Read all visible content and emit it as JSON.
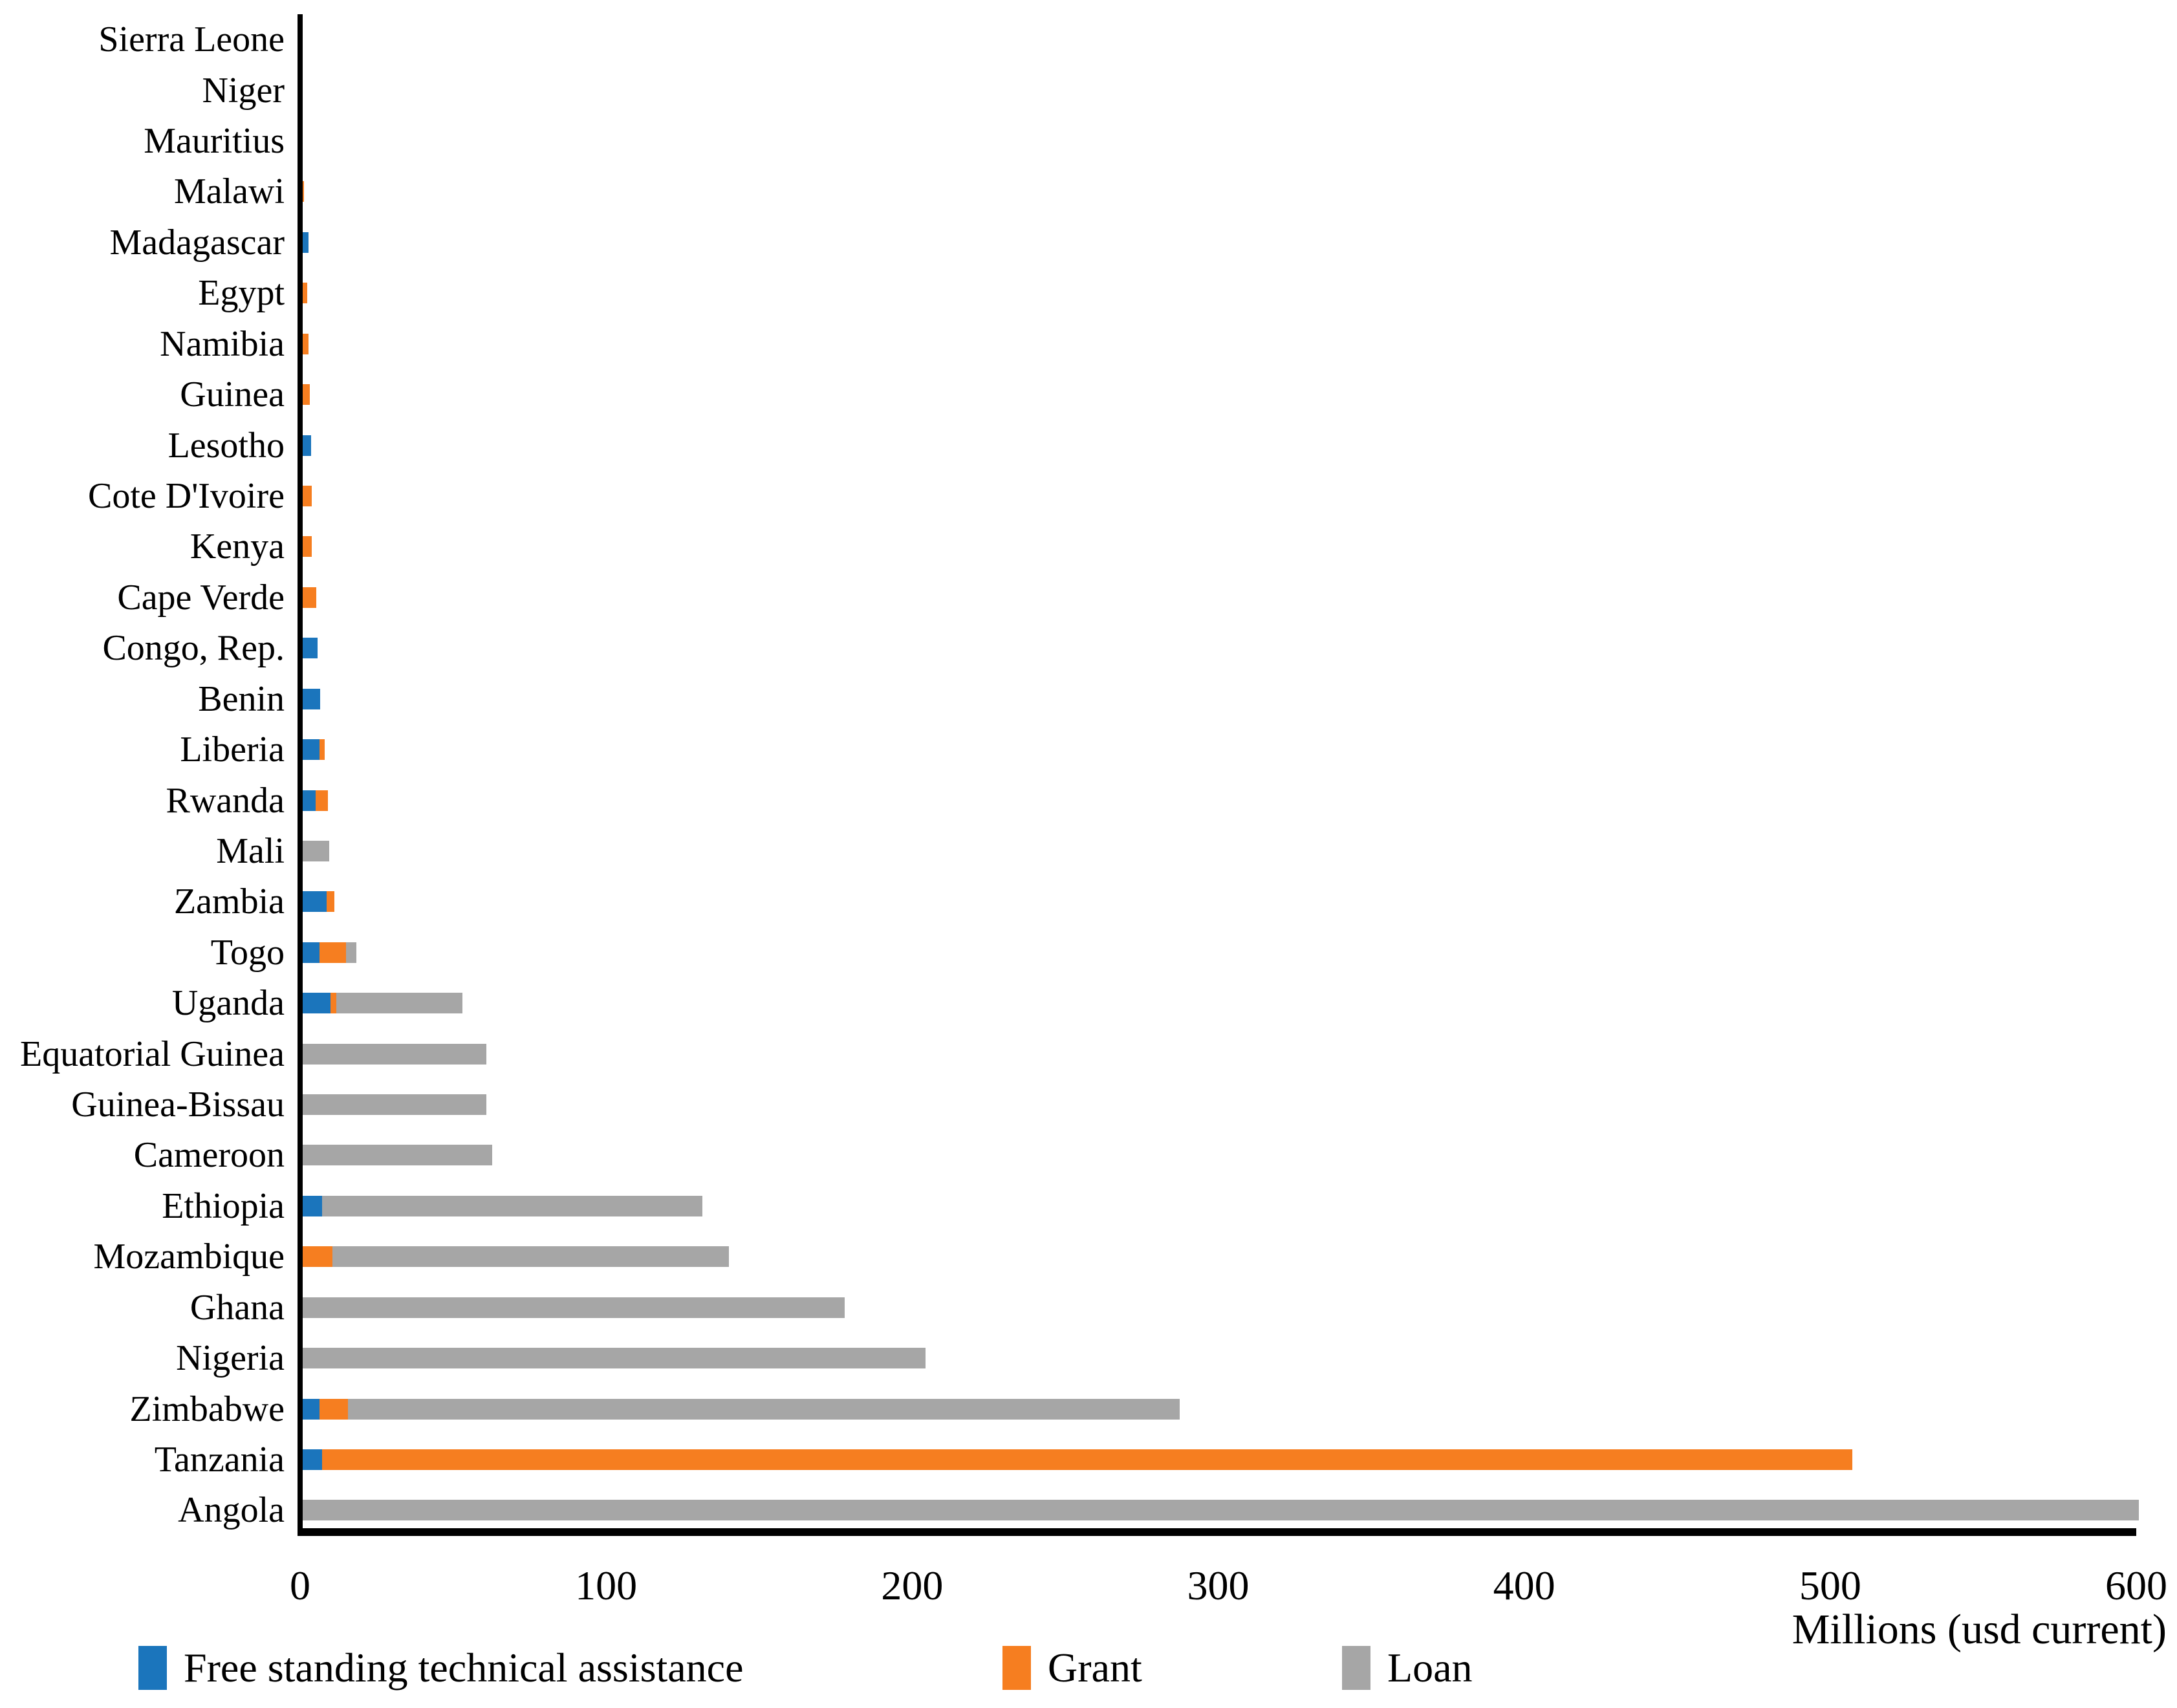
{
  "chart_data": {
    "type": "bar",
    "orientation": "horizontal",
    "stacked": true,
    "title": "",
    "xlabel": "Millions (usd current)",
    "ylabel": "",
    "xlim": [
      0,
      600
    ],
    "xticks": [
      "0",
      "100",
      "200",
      "300",
      "400",
      "500",
      "600"
    ],
    "grid": false,
    "legend_position": "bottom-left",
    "categories": [
      "Sierra Leone",
      "Niger",
      "Mauritius",
      "Malawi",
      "Madagascar",
      "Egypt",
      "Namibia",
      "Guinea",
      "Lesotho",
      "Cote D'Ivoire",
      "Kenya",
      "Cape Verde",
      "Congo, Rep.",
      "Benin",
      "Liberia",
      "Rwanda",
      "Mali",
      "Zambia",
      "Togo",
      "Uganda",
      "Equatorial Guinea",
      "Guinea-Bissau",
      "Cameroon",
      "Ethiopia",
      "Mozambique",
      "Ghana",
      "Nigeria",
      "Zimbabwe",
      "Tanzania",
      "Angola"
    ],
    "series": [
      {
        "name": "Free standing technical assistance",
        "color": "#1B75BC",
        "values": [
          0,
          0,
          0,
          0,
          1.8,
          0,
          0,
          0,
          2.7,
          0,
          0,
          0,
          4.9,
          5.8,
          5.6,
          4.2,
          0,
          7.8,
          5.5,
          9.0,
          0,
          0,
          0,
          6.3,
          0,
          0,
          0,
          5.6,
          6.3,
          0
        ]
      },
      {
        "name": "Grant",
        "color": "#F67E20",
        "values": [
          0,
          0,
          0,
          0.5,
          0,
          1.5,
          1.9,
          2.3,
          0,
          2.9,
          2.9,
          4.4,
          0,
          0,
          1.6,
          4.0,
          0,
          2.5,
          8.6,
          1.9,
          0,
          0,
          0,
          0,
          9.7,
          0,
          0,
          9.3,
          500,
          0
        ]
      },
      {
        "name": "Loan",
        "color": "#A6A6A6",
        "values": [
          0,
          0,
          0,
          0,
          0,
          0,
          0,
          0,
          0,
          0,
          0,
          0,
          0,
          0,
          0,
          0,
          8.7,
          0,
          3.4,
          41.4,
          60,
          60,
          62,
          124.3,
          129.6,
          177,
          203.5,
          271.7,
          0,
          600
        ]
      }
    ]
  },
  "axis": {
    "x_title": "Millions (usd current)",
    "axis_color": "#000000"
  },
  "legend": {
    "items": [
      {
        "label": "Free standing technical assistance",
        "color": "#1B75BC"
      },
      {
        "label": "Grant",
        "color": "#F67E20"
      },
      {
        "label": "Loan",
        "color": "#A6A6A6"
      }
    ]
  }
}
